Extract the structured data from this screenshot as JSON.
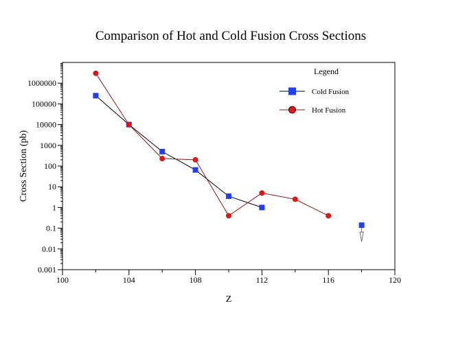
{
  "chart_data": {
    "type": "scatter",
    "title": "Comparison of Hot and Cold Fusion Cross Sections",
    "xlabel": "Z",
    "ylabel": "Cross Section (pb)",
    "xlim": [
      100,
      120
    ],
    "ylim": [
      0.001,
      10000000
    ],
    "yscale": "log",
    "x_ticks": [
      100,
      104,
      108,
      112,
      116,
      120
    ],
    "x_minor_ticks": [
      102,
      106,
      110,
      114,
      118
    ],
    "y_ticks": [
      {
        "value": 0.001,
        "label": "0.001"
      },
      {
        "value": 0.01,
        "label": "0.01"
      },
      {
        "value": 0.1,
        "label": "0.1"
      },
      {
        "value": 1,
        "label": "1"
      },
      {
        "value": 10,
        "label": "10"
      },
      {
        "value": 100,
        "label": "100"
      },
      {
        "value": 1000,
        "label": "1000"
      },
      {
        "value": 10000,
        "label": "10000"
      },
      {
        "value": 100000,
        "label": "100000"
      },
      {
        "value": 1000000,
        "label": "1000000"
      }
    ],
    "grid": false,
    "legend": {
      "title": "Legend",
      "position": "top-right"
    },
    "series": [
      {
        "name": "Cold Fusion",
        "marker": "square",
        "color": "#1f3dff",
        "line_color": "#000000",
        "points": [
          {
            "x": 102,
            "y": 250000
          },
          {
            "x": 104,
            "y": 10000
          },
          {
            "x": 106,
            "y": 500
          },
          {
            "x": 108,
            "y": 65
          },
          {
            "x": 110,
            "y": 3.5
          },
          {
            "x": 112,
            "y": 1
          }
        ]
      },
      {
        "name": "Hot Fusion",
        "marker": "circle",
        "color": "#ee1111",
        "line_color": "#8b1a1a",
        "points": [
          {
            "x": 102,
            "y": 3000000
          },
          {
            "x": 104,
            "y": 10000
          },
          {
            "x": 106,
            "y": 230
          },
          {
            "x": 108,
            "y": 200
          },
          {
            "x": 110,
            "y": 0.4
          },
          {
            "x": 112,
            "y": 5
          },
          {
            "x": 114,
            "y": 2.5
          },
          {
            "x": 116,
            "y": 0.4
          }
        ]
      },
      {
        "name": "",
        "marker": "square",
        "color": "#1f3dff",
        "upper_limit": true,
        "points": [
          {
            "x": 118,
            "y": 0.14
          }
        ]
      }
    ]
  }
}
